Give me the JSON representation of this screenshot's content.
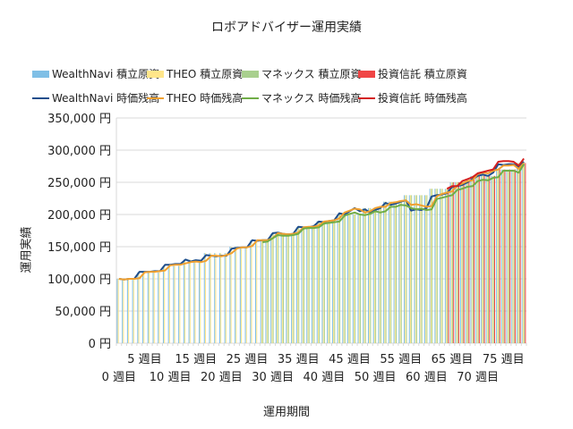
{
  "chart_data": {
    "type": "bar+line",
    "title": "ロボアドバイザー運用実績",
    "xlabel": "運用期間",
    "ylabel": "運用実績",
    "ylim": [
      0,
      350000
    ],
    "y_ticks": [
      "0 円",
      "50,000 円",
      "100,000 円",
      "150,000 円",
      "200,000 円",
      "250,000 円",
      "300,000 円",
      "350,000 円"
    ],
    "y_tick_values": [
      0,
      50000,
      100000,
      150000,
      200000,
      250000,
      300000,
      350000
    ],
    "x_tick_labels": [
      "0 週目",
      "5 週目",
      "10 週目",
      "15 週目",
      "20 週目",
      "25 週目",
      "30 週目",
      "35 週目",
      "40 週目",
      "45 週目",
      "50 週目",
      "55 週目",
      "60 週目",
      "65 週目",
      "70 週目",
      "75 週目"
    ],
    "week_count": 80,
    "grid": true,
    "legend_position": "top",
    "bar_series": [
      {
        "name": "WealthNavi  積立原資",
        "color": "#7fbfe6",
        "values": [
          100000,
          100000,
          100000,
          100000,
          110000,
          110000,
          110000,
          110000,
          110000,
          120000,
          120000,
          120000,
          120000,
          130000,
          130000,
          130000,
          130000,
          140000,
          140000,
          140000,
          140000,
          140000,
          150000,
          150000,
          150000,
          150000,
          160000,
          160000,
          160000,
          160000,
          170000,
          170000,
          170000,
          170000,
          170000,
          180000,
          180000,
          180000,
          180000,
          190000,
          190000,
          190000,
          190000,
          200000,
          200000,
          200000,
          200000,
          200000,
          210000,
          210000,
          210000,
          210000,
          220000,
          220000,
          220000,
          220000,
          230000,
          230000,
          230000,
          230000,
          230000,
          240000,
          240000,
          240000,
          240000,
          250000,
          250000,
          250000,
          250000,
          260000,
          260000,
          260000,
          260000,
          260000,
          270000,
          270000,
          270000,
          270000,
          280000,
          280000
        ]
      },
      {
        "name": "THEO  積立原資",
        "color": "#ffe68a",
        "values": [
          100000,
          100000,
          100000,
          100000,
          110000,
          110000,
          110000,
          110000,
          110000,
          120000,
          120000,
          120000,
          120000,
          130000,
          130000,
          130000,
          130000,
          140000,
          140000,
          140000,
          140000,
          140000,
          150000,
          150000,
          150000,
          150000,
          160000,
          160000,
          160000,
          160000,
          170000,
          170000,
          170000,
          170000,
          170000,
          180000,
          180000,
          180000,
          180000,
          190000,
          190000,
          190000,
          190000,
          200000,
          200000,
          200000,
          200000,
          200000,
          210000,
          210000,
          210000,
          210000,
          220000,
          220000,
          220000,
          220000,
          230000,
          230000,
          230000,
          230000,
          230000,
          240000,
          240000,
          240000,
          240000,
          250000,
          250000,
          250000,
          250000,
          260000,
          260000,
          260000,
          260000,
          260000,
          270000,
          270000,
          270000,
          270000,
          280000,
          280000
        ]
      },
      {
        "name": "マネックス 積立原資",
        "color": "#a9d08e",
        "values": [
          null,
          null,
          null,
          null,
          null,
          null,
          null,
          null,
          null,
          null,
          null,
          null,
          null,
          null,
          null,
          null,
          null,
          null,
          null,
          null,
          null,
          null,
          null,
          null,
          null,
          null,
          null,
          null,
          160000,
          160000,
          170000,
          170000,
          170000,
          170000,
          170000,
          180000,
          180000,
          180000,
          180000,
          190000,
          190000,
          190000,
          190000,
          200000,
          200000,
          200000,
          200000,
          200000,
          210000,
          210000,
          210000,
          210000,
          220000,
          220000,
          220000,
          220000,
          230000,
          230000,
          230000,
          230000,
          230000,
          240000,
          240000,
          240000,
          240000,
          250000,
          250000,
          250000,
          250000,
          260000,
          260000,
          260000,
          260000,
          260000,
          270000,
          270000,
          270000,
          270000,
          280000,
          280000
        ]
      },
      {
        "name": "投資信託 積立原資",
        "color": "#f04545",
        "values": [
          null,
          null,
          null,
          null,
          null,
          null,
          null,
          null,
          null,
          null,
          null,
          null,
          null,
          null,
          null,
          null,
          null,
          null,
          null,
          null,
          null,
          null,
          null,
          null,
          null,
          null,
          null,
          null,
          null,
          null,
          null,
          null,
          null,
          null,
          null,
          null,
          null,
          null,
          null,
          null,
          null,
          null,
          null,
          null,
          null,
          null,
          null,
          null,
          null,
          null,
          null,
          null,
          null,
          null,
          null,
          null,
          null,
          null,
          null,
          null,
          null,
          null,
          null,
          null,
          240000,
          250000,
          250000,
          250000,
          250000,
          260000,
          260000,
          260000,
          260000,
          260000,
          270000,
          270000,
          270000,
          270000,
          280000,
          280000
        ]
      }
    ],
    "line_series": [
      {
        "name": "WealthNavi  時価残高",
        "color": "#1f4e8c",
        "values": [
          100000,
          99000,
          100000,
          100000,
          111000,
          111000,
          111000,
          112000,
          112000,
          122000,
          122000,
          123000,
          123000,
          130000,
          127000,
          129000,
          128000,
          137000,
          136000,
          135000,
          136000,
          136000,
          147000,
          148000,
          149000,
          149000,
          160000,
          159000,
          160000,
          160000,
          171000,
          172000,
          170000,
          169000,
          170000,
          181000,
          180000,
          180000,
          182000,
          189000,
          188000,
          190000,
          191000,
          202000,
          200000,
          205000,
          210000,
          205000,
          208000,
          203000,
          207000,
          210000,
          218000,
          215000,
          217000,
          220000,
          222000,
          206000,
          208000,
          207000,
          210000,
          228000,
          230000,
          231000,
          233000,
          243000,
          244000,
          246000,
          250000,
          255000,
          260000,
          262000,
          260000,
          265000,
          278000,
          277000,
          278000,
          278000,
          274000,
          282000
        ]
      },
      {
        "name": "THEO  時価残高",
        "color": "#f0a030",
        "values": [
          100000,
          99000,
          100000,
          100000,
          101000,
          110000,
          111000,
          111000,
          112000,
          113000,
          121000,
          122000,
          122000,
          124000,
          126000,
          127000,
          126000,
          128000,
          136000,
          136000,
          135000,
          137000,
          140000,
          147000,
          149000,
          149000,
          151000,
          160000,
          160000,
          160000,
          163000,
          171000,
          170000,
          169000,
          170000,
          172000,
          180000,
          181000,
          181000,
          183000,
          189000,
          190000,
          191000,
          194000,
          203000,
          206000,
          209000,
          208000,
          203000,
          205000,
          210000,
          212000,
          212000,
          218000,
          219000,
          221000,
          222000,
          215000,
          216000,
          214000,
          212000,
          213000,
          228000,
          232000,
          234000,
          236000,
          245000,
          248000,
          252000,
          253000,
          263000,
          265000,
          264000,
          268000,
          270000,
          276000,
          276000,
          277000,
          271000,
          280000
        ]
      },
      {
        "name": "マネックス 時価残高",
        "color": "#70ad47",
        "values": [
          null,
          null,
          null,
          null,
          null,
          null,
          null,
          null,
          null,
          null,
          null,
          null,
          null,
          null,
          null,
          null,
          null,
          null,
          null,
          null,
          null,
          null,
          null,
          null,
          null,
          null,
          null,
          null,
          157000,
          158000,
          163000,
          168000,
          167000,
          167000,
          168000,
          170000,
          178000,
          179000,
          179000,
          180000,
          186000,
          187000,
          188000,
          189000,
          198000,
          201000,
          203000,
          200000,
          199000,
          201000,
          205000,
          203000,
          205000,
          212000,
          212000,
          215000,
          214000,
          210000,
          208000,
          209000,
          207000,
          208000,
          224000,
          226000,
          228000,
          230000,
          238000,
          240000,
          243000,
          244000,
          252000,
          254000,
          253000,
          257000,
          258000,
          268000,
          268000,
          268000,
          265000,
          278000
        ]
      },
      {
        "name": "投資信託 時価残高",
        "color": "#d42020",
        "values": [
          null,
          null,
          null,
          null,
          null,
          null,
          null,
          null,
          null,
          null,
          null,
          null,
          null,
          null,
          null,
          null,
          null,
          null,
          null,
          null,
          null,
          null,
          null,
          null,
          null,
          null,
          null,
          null,
          null,
          null,
          null,
          null,
          null,
          null,
          null,
          null,
          null,
          null,
          null,
          null,
          null,
          null,
          null,
          null,
          null,
          null,
          null,
          null,
          null,
          null,
          null,
          null,
          null,
          null,
          null,
          null,
          null,
          null,
          null,
          null,
          null,
          null,
          null,
          null,
          240000,
          244000,
          244000,
          252000,
          255000,
          258000,
          264000,
          266000,
          268000,
          270000,
          282000,
          283000,
          283000,
          282000,
          276000,
          287000
        ]
      }
    ]
  }
}
